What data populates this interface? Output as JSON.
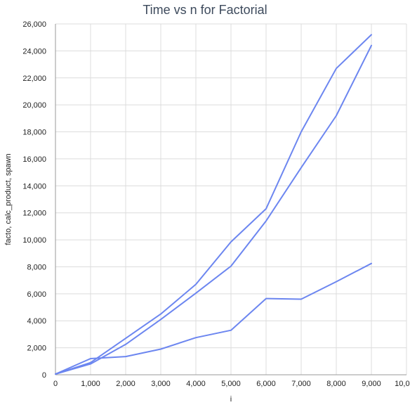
{
  "chart_data": {
    "type": "line",
    "title": "Time vs n for Factorial",
    "xlabel": "i",
    "ylabel": "facto, calc_product, spawn",
    "xlim": [
      0,
      10000
    ],
    "ylim": [
      0,
      26000
    ],
    "x_ticks": [
      "0",
      "1,000",
      "2,000",
      "3,000",
      "4,000",
      "5,000",
      "6,000",
      "7,000",
      "8,000",
      "9,000",
      "10,000"
    ],
    "y_ticks": [
      "0",
      "2,000",
      "4,000",
      "6,000",
      "8,000",
      "10,000",
      "12,000",
      "14,000",
      "16,000",
      "18,000",
      "20,000",
      "22,000",
      "24,000",
      "26,000"
    ],
    "grid": true,
    "legend": "none",
    "line_color": "#6c86f0",
    "x": [
      0,
      1000,
      2000,
      3000,
      4000,
      5000,
      6000,
      7000,
      8000,
      9000
    ],
    "series": [
      {
        "values": [
          50,
          900,
          2700,
          4500,
          6700,
          9850,
          12300,
          18000,
          22700,
          25200
        ]
      },
      {
        "values": [
          50,
          800,
          2250,
          4100,
          6050,
          8050,
          11400,
          15350,
          19200,
          24400
        ]
      },
      {
        "values": [
          50,
          1200,
          1350,
          1900,
          2750,
          3300,
          5650,
          5600,
          6900,
          8250
        ]
      }
    ]
  }
}
